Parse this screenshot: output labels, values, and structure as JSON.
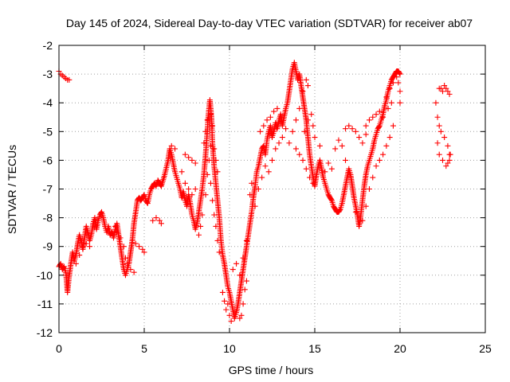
{
  "chart_data": {
    "type": "scatter",
    "title": "Day 145 of 2024, Sidereal Day-to-day VTEC variation (SDTVAR) for receiver ab07",
    "xlabel": "GPS time / hours",
    "ylabel": "SDTVAR / TECUs",
    "xlim": [
      0,
      25
    ],
    "ylim": [
      -12,
      -2
    ],
    "xticks": [
      "0",
      "5",
      "10",
      "15",
      "20",
      "25"
    ],
    "yticks": [
      "-2",
      "-3",
      "-4",
      "-5",
      "-6",
      "-7",
      "-8",
      "-9",
      "-10",
      "-11",
      "-12"
    ],
    "grid": true,
    "marker": "+",
    "color": "#ff0000",
    "trace": [
      [
        0.0,
        -9.7
      ],
      [
        0.1,
        -9.6
      ],
      [
        0.2,
        -9.8
      ],
      [
        0.3,
        -9.7
      ],
      [
        0.4,
        -9.9
      ],
      [
        0.45,
        -10.2
      ],
      [
        0.5,
        -10.6
      ],
      [
        0.55,
        -10.3
      ],
      [
        0.6,
        -10.0
      ],
      [
        0.7,
        -9.6
      ],
      [
        0.8,
        -9.2
      ],
      [
        0.9,
        -9.5
      ],
      [
        1.0,
        -9.3
      ],
      [
        1.1,
        -8.9
      ],
      [
        1.2,
        -8.6
      ],
      [
        1.3,
        -8.8
      ],
      [
        1.4,
        -9.1
      ],
      [
        1.5,
        -8.7
      ],
      [
        1.6,
        -8.3
      ],
      [
        1.7,
        -8.5
      ],
      [
        1.8,
        -8.8
      ],
      [
        1.9,
        -8.6
      ],
      [
        2.0,
        -8.2
      ],
      [
        2.1,
        -8.0
      ],
      [
        2.2,
        -8.4
      ],
      [
        2.3,
        -8.1
      ],
      [
        2.4,
        -7.9
      ],
      [
        2.5,
        -7.8
      ],
      [
        2.6,
        -8.0
      ],
      [
        2.7,
        -8.3
      ],
      [
        2.8,
        -8.5
      ],
      [
        2.9,
        -8.3
      ],
      [
        3.0,
        -8.6
      ],
      [
        3.1,
        -8.5
      ],
      [
        3.2,
        -8.7
      ],
      [
        3.3,
        -8.4
      ],
      [
        3.4,
        -8.2
      ],
      [
        3.5,
        -8.6
      ],
      [
        3.6,
        -9.0
      ],
      [
        3.7,
        -9.4
      ],
      [
        3.8,
        -9.8
      ],
      [
        3.9,
        -10.0
      ],
      [
        4.0,
        -9.8
      ],
      [
        4.1,
        -9.6
      ],
      [
        4.2,
        -9.2
      ],
      [
        4.3,
        -8.8
      ],
      [
        4.4,
        -8.2
      ],
      [
        4.5,
        -7.8
      ],
      [
        4.6,
        -7.4
      ],
      [
        4.7,
        -7.3
      ],
      [
        4.8,
        -7.4
      ],
      [
        4.9,
        -7.3
      ],
      [
        5.0,
        -7.2
      ],
      [
        5.1,
        -7.4
      ],
      [
        5.2,
        -7.5
      ],
      [
        5.3,
        -7.2
      ],
      [
        5.4,
        -7.0
      ],
      [
        5.5,
        -6.9
      ],
      [
        5.6,
        -6.8
      ],
      [
        5.7,
        -6.9
      ],
      [
        5.8,
        -6.7
      ],
      [
        5.9,
        -6.8
      ],
      [
        6.0,
        -6.9
      ],
      [
        6.2,
        -6.5
      ],
      [
        6.4,
        -6.0
      ],
      [
        6.5,
        -5.6
      ],
      [
        6.6,
        -5.8
      ],
      [
        6.7,
        -6.1
      ],
      [
        6.8,
        -6.4
      ],
      [
        6.9,
        -6.6
      ],
      [
        7.0,
        -6.8
      ],
      [
        7.1,
        -7.0
      ],
      [
        7.2,
        -7.3
      ],
      [
        7.3,
        -7.1
      ],
      [
        7.4,
        -7.4
      ],
      [
        7.5,
        -7.6
      ],
      [
        7.6,
        -7.2
      ],
      [
        7.7,
        -7.5
      ],
      [
        7.8,
        -7.9
      ],
      [
        7.9,
        -8.1
      ],
      [
        8.0,
        -8.4
      ],
      [
        8.1,
        -8.2
      ],
      [
        8.2,
        -7.8
      ],
      [
        8.3,
        -7.4
      ],
      [
        8.4,
        -7.0
      ],
      [
        8.5,
        -6.5
      ],
      [
        8.6,
        -5.8
      ],
      [
        8.7,
        -5.0
      ],
      [
        8.75,
        -4.5
      ],
      [
        8.8,
        -4.2
      ],
      [
        8.85,
        -3.9
      ],
      [
        8.9,
        -4.2
      ],
      [
        8.95,
        -4.6
      ],
      [
        9.0,
        -5.4
      ],
      [
        9.1,
        -6.2
      ],
      [
        9.2,
        -6.8
      ],
      [
        9.3,
        -7.4
      ],
      [
        9.4,
        -8.0
      ],
      [
        9.5,
        -8.8
      ],
      [
        9.6,
        -9.3
      ],
      [
        9.7,
        -9.6
      ],
      [
        9.8,
        -10.0
      ],
      [
        9.9,
        -10.4
      ],
      [
        10.0,
        -10.6
      ],
      [
        10.1,
        -10.9
      ],
      [
        10.2,
        -11.2
      ],
      [
        10.3,
        -11.5
      ],
      [
        10.4,
        -11.3
      ],
      [
        10.5,
        -11.0
      ],
      [
        10.6,
        -10.6
      ],
      [
        10.7,
        -10.2
      ],
      [
        10.8,
        -9.8
      ],
      [
        10.9,
        -9.4
      ],
      [
        11.0,
        -9.0
      ],
      [
        11.1,
        -8.6
      ],
      [
        11.2,
        -8.2
      ],
      [
        11.3,
        -7.8
      ],
      [
        11.4,
        -7.3
      ],
      [
        11.5,
        -6.9
      ],
      [
        11.6,
        -6.4
      ],
      [
        11.7,
        -6.2
      ],
      [
        11.8,
        -5.9
      ],
      [
        11.9,
        -5.6
      ],
      [
        12.0,
        -5.5
      ],
      [
        12.1,
        -5.8
      ],
      [
        12.2,
        -5.3
      ],
      [
        12.3,
        -5.0
      ],
      [
        12.4,
        -4.8
      ],
      [
        12.5,
        -5.2
      ],
      [
        12.6,
        -5.0
      ],
      [
        12.7,
        -4.7
      ],
      [
        12.8,
        -4.9
      ],
      [
        12.9,
        -4.6
      ],
      [
        13.0,
        -4.4
      ],
      [
        13.1,
        -4.8
      ],
      [
        13.2,
        -4.5
      ],
      [
        13.3,
        -4.2
      ],
      [
        13.4,
        -4.0
      ],
      [
        13.5,
        -3.6
      ],
      [
        13.6,
        -3.2
      ],
      [
        13.7,
        -2.8
      ],
      [
        13.8,
        -2.6
      ],
      [
        13.9,
        -2.9
      ],
      [
        14.0,
        -3.2
      ],
      [
        14.1,
        -3.0
      ],
      [
        14.2,
        -3.4
      ],
      [
        14.3,
        -3.8
      ],
      [
        14.4,
        -4.2
      ],
      [
        14.5,
        -4.6
      ],
      [
        14.6,
        -5.2
      ],
      [
        14.7,
        -5.8
      ],
      [
        14.8,
        -6.2
      ],
      [
        14.9,
        -6.6
      ],
      [
        15.0,
        -6.9
      ],
      [
        15.1,
        -6.5
      ],
      [
        15.2,
        -6.2
      ],
      [
        15.3,
        -6.0
      ],
      [
        15.4,
        -6.3
      ],
      [
        15.5,
        -6.6
      ],
      [
        15.6,
        -6.8
      ],
      [
        15.7,
        -7.0
      ],
      [
        15.8,
        -7.2
      ],
      [
        15.9,
        -7.3
      ],
      [
        16.0,
        -7.4
      ],
      [
        16.1,
        -7.6
      ],
      [
        16.2,
        -7.7
      ],
      [
        16.3,
        -7.8
      ],
      [
        16.4,
        -7.8
      ],
      [
        16.5,
        -7.7
      ],
      [
        16.6,
        -7.5
      ],
      [
        16.7,
        -7.2
      ],
      [
        16.8,
        -6.9
      ],
      [
        16.9,
        -6.6
      ],
      [
        17.0,
        -6.3
      ],
      [
        17.1,
        -6.5
      ],
      [
        17.2,
        -6.9
      ],
      [
        17.3,
        -7.3
      ],
      [
        17.4,
        -7.6
      ],
      [
        17.5,
        -7.9
      ],
      [
        17.6,
        -8.3
      ],
      [
        17.7,
        -7.9
      ],
      [
        17.8,
        -7.4
      ],
      [
        17.9,
        -6.9
      ],
      [
        18.0,
        -6.5
      ],
      [
        18.1,
        -6.2
      ],
      [
        18.2,
        -6.0
      ],
      [
        18.3,
        -5.8
      ],
      [
        18.4,
        -5.6
      ],
      [
        18.5,
        -5.3
      ],
      [
        18.6,
        -5.1
      ],
      [
        18.7,
        -4.9
      ],
      [
        18.8,
        -4.8
      ],
      [
        18.9,
        -4.6
      ],
      [
        19.0,
        -4.4
      ],
      [
        19.1,
        -4.1
      ],
      [
        19.2,
        -3.9
      ],
      [
        19.3,
        -3.6
      ],
      [
        19.4,
        -3.4
      ],
      [
        19.5,
        -3.2
      ],
      [
        19.6,
        -3.1
      ],
      [
        19.7,
        -3.0
      ],
      [
        19.8,
        -2.9
      ],
      [
        19.9,
        -2.9
      ],
      [
        20.0,
        -3.0
      ]
    ],
    "points": [
      [
        0.0,
        -2.9
      ],
      [
        0.1,
        -3.0
      ],
      [
        0.2,
        -3.05
      ],
      [
        0.3,
        -3.1
      ],
      [
        0.4,
        -3.15
      ],
      [
        0.5,
        -3.2
      ],
      [
        0.6,
        -3.2
      ],
      [
        1.0,
        -9.6
      ],
      [
        1.2,
        -9.3
      ],
      [
        1.4,
        -9.0
      ],
      [
        1.6,
        -8.9
      ],
      [
        1.8,
        -9.0
      ],
      [
        3.3,
        -8.3
      ],
      [
        3.4,
        -8.5
      ],
      [
        3.6,
        -8.7
      ],
      [
        3.8,
        -9.0
      ],
      [
        3.9,
        -9.4
      ],
      [
        4.0,
        -9.6
      ],
      [
        4.2,
        -9.8
      ],
      [
        4.4,
        -9.9
      ],
      [
        4.3,
        -8.8
      ],
      [
        4.5,
        -8.9
      ],
      [
        4.7,
        -9.0
      ],
      [
        4.9,
        -9.1
      ],
      [
        5.0,
        -9.2
      ],
      [
        5.5,
        -8.1
      ],
      [
        5.7,
        -8.0
      ],
      [
        5.9,
        -8.1
      ],
      [
        6.0,
        -8.2
      ],
      [
        6.6,
        -5.5
      ],
      [
        6.8,
        -5.6
      ],
      [
        7.2,
        -6.4
      ],
      [
        7.4,
        -6.8
      ],
      [
        7.6,
        -7.0
      ],
      [
        7.8,
        -7.2
      ],
      [
        8.0,
        -7.0
      ],
      [
        7.4,
        -5.8
      ],
      [
        7.6,
        -5.9
      ],
      [
        7.8,
        -6.0
      ],
      [
        8.0,
        -6.1
      ],
      [
        8.2,
        -8.6
      ],
      [
        8.3,
        -8.3
      ],
      [
        8.4,
        -7.9
      ],
      [
        8.6,
        -7.2
      ],
      [
        8.7,
        -6.5
      ],
      [
        8.8,
        -6.0
      ],
      [
        8.9,
        -5.5
      ],
      [
        8.9,
        -6.8
      ],
      [
        9.0,
        -7.4
      ],
      [
        9.1,
        -7.9
      ],
      [
        9.2,
        -8.3
      ],
      [
        9.3,
        -8.8
      ],
      [
        9.4,
        -9.2
      ],
      [
        9.0,
        -4.8
      ],
      [
        9.1,
        -5.6
      ],
      [
        9.2,
        -6.0
      ],
      [
        9.3,
        -6.4
      ],
      [
        8.5,
        -5.4
      ],
      [
        8.6,
        -5.0
      ],
      [
        8.7,
        -4.6
      ],
      [
        8.8,
        -4.5
      ],
      [
        8.9,
        -4.4
      ],
      [
        9.6,
        -10.6
      ],
      [
        9.7,
        -10.9
      ],
      [
        9.8,
        -11.2
      ],
      [
        9.9,
        -11.0
      ],
      [
        10.0,
        -11.4
      ],
      [
        10.1,
        -11.6
      ],
      [
        10.6,
        -11.5
      ],
      [
        10.7,
        -11.4
      ],
      [
        10.8,
        -11.0
      ],
      [
        10.9,
        -10.5
      ],
      [
        11.0,
        -10.2
      ],
      [
        10.2,
        -9.8
      ],
      [
        10.4,
        -9.6
      ],
      [
        10.6,
        -10.0
      ],
      [
        10.8,
        -9.4
      ],
      [
        11.0,
        -8.8
      ],
      [
        11.2,
        -7.2
      ],
      [
        11.3,
        -6.8
      ],
      [
        11.5,
        -7.6
      ],
      [
        11.7,
        -7.0
      ],
      [
        11.9,
        -6.6
      ],
      [
        12.1,
        -6.2
      ],
      [
        11.8,
        -5.0
      ],
      [
        12.0,
        -4.8
      ],
      [
        12.2,
        -4.6
      ],
      [
        12.4,
        -4.5
      ],
      [
        12.6,
        -4.3
      ],
      [
        12.8,
        -4.2
      ],
      [
        12.3,
        -6.4
      ],
      [
        12.5,
        -6.0
      ],
      [
        12.7,
        -5.6
      ],
      [
        12.9,
        -5.4
      ],
      [
        13.1,
        -5.2
      ],
      [
        13.3,
        -4.9
      ],
      [
        13.5,
        -5.4
      ],
      [
        13.7,
        -5.0
      ],
      [
        13.9,
        -4.6
      ],
      [
        14.1,
        -4.2
      ],
      [
        14.3,
        -3.6
      ],
      [
        14.5,
        -3.2
      ],
      [
        14.6,
        -3.4
      ],
      [
        14.4,
        -5.0
      ],
      [
        14.6,
        -4.6
      ],
      [
        14.8,
        -4.4
      ],
      [
        14.9,
        -4.8
      ],
      [
        15.0,
        -5.2
      ],
      [
        13.9,
        -5.6
      ],
      [
        14.1,
        -5.8
      ],
      [
        14.3,
        -6.0
      ],
      [
        14.5,
        -6.3
      ],
      [
        14.7,
        -6.6
      ],
      [
        14.9,
        -6.8
      ],
      [
        15.3,
        -5.5
      ],
      [
        15.6,
        -6.4
      ],
      [
        15.8,
        -6.1
      ],
      [
        16.0,
        -6.3
      ],
      [
        16.2,
        -5.6
      ],
      [
        16.4,
        -5.3
      ],
      [
        16.6,
        -5.5
      ],
      [
        16.8,
        -6.0
      ],
      [
        16.8,
        -4.9
      ],
      [
        17.0,
        -4.8
      ],
      [
        17.2,
        -4.9
      ],
      [
        17.4,
        -5.0
      ],
      [
        17.6,
        -5.2
      ],
      [
        17.8,
        -5.4
      ],
      [
        18.0,
        -5.1
      ],
      [
        17.4,
        -7.8
      ],
      [
        17.6,
        -7.9
      ],
      [
        17.8,
        -8.1
      ],
      [
        18.0,
        -7.6
      ],
      [
        18.2,
        -7.0
      ],
      [
        18.4,
        -6.6
      ],
      [
        18.0,
        -4.8
      ],
      [
        18.2,
        -4.6
      ],
      [
        18.4,
        -4.5
      ],
      [
        18.6,
        -4.4
      ],
      [
        18.8,
        -4.3
      ],
      [
        19.0,
        -4.5
      ],
      [
        18.6,
        -6.2
      ],
      [
        18.8,
        -6.0
      ],
      [
        19.0,
        -5.8
      ],
      [
        19.2,
        -5.5
      ],
      [
        19.4,
        -5.2
      ],
      [
        19.6,
        -4.8
      ],
      [
        19.4,
        -3.5
      ],
      [
        19.6,
        -3.3
      ],
      [
        19.8,
        -3.1
      ],
      [
        19.9,
        -3.3
      ],
      [
        20.0,
        -3.6
      ],
      [
        20.0,
        -4.0
      ],
      [
        19.2,
        -3.8
      ],
      [
        19.3,
        -4.2
      ],
      [
        19.5,
        -4.0
      ],
      [
        22.3,
        -3.5
      ],
      [
        22.4,
        -3.5
      ],
      [
        22.5,
        -3.6
      ],
      [
        22.6,
        -3.4
      ],
      [
        22.7,
        -3.5
      ],
      [
        22.8,
        -3.6
      ],
      [
        22.9,
        -3.7
      ],
      [
        22.1,
        -4.0
      ],
      [
        22.2,
        -4.5
      ],
      [
        22.3,
        -4.8
      ],
      [
        22.4,
        -5.0
      ],
      [
        22.6,
        -5.2
      ],
      [
        22.8,
        -5.5
      ],
      [
        22.9,
        -5.8
      ],
      [
        22.2,
        -5.4
      ],
      [
        22.3,
        -5.8
      ],
      [
        22.5,
        -6.0
      ],
      [
        22.7,
        -6.2
      ],
      [
        22.8,
        -6.1
      ],
      [
        22.9,
        -6.0
      ],
      [
        22.95,
        -5.8
      ]
    ]
  }
}
